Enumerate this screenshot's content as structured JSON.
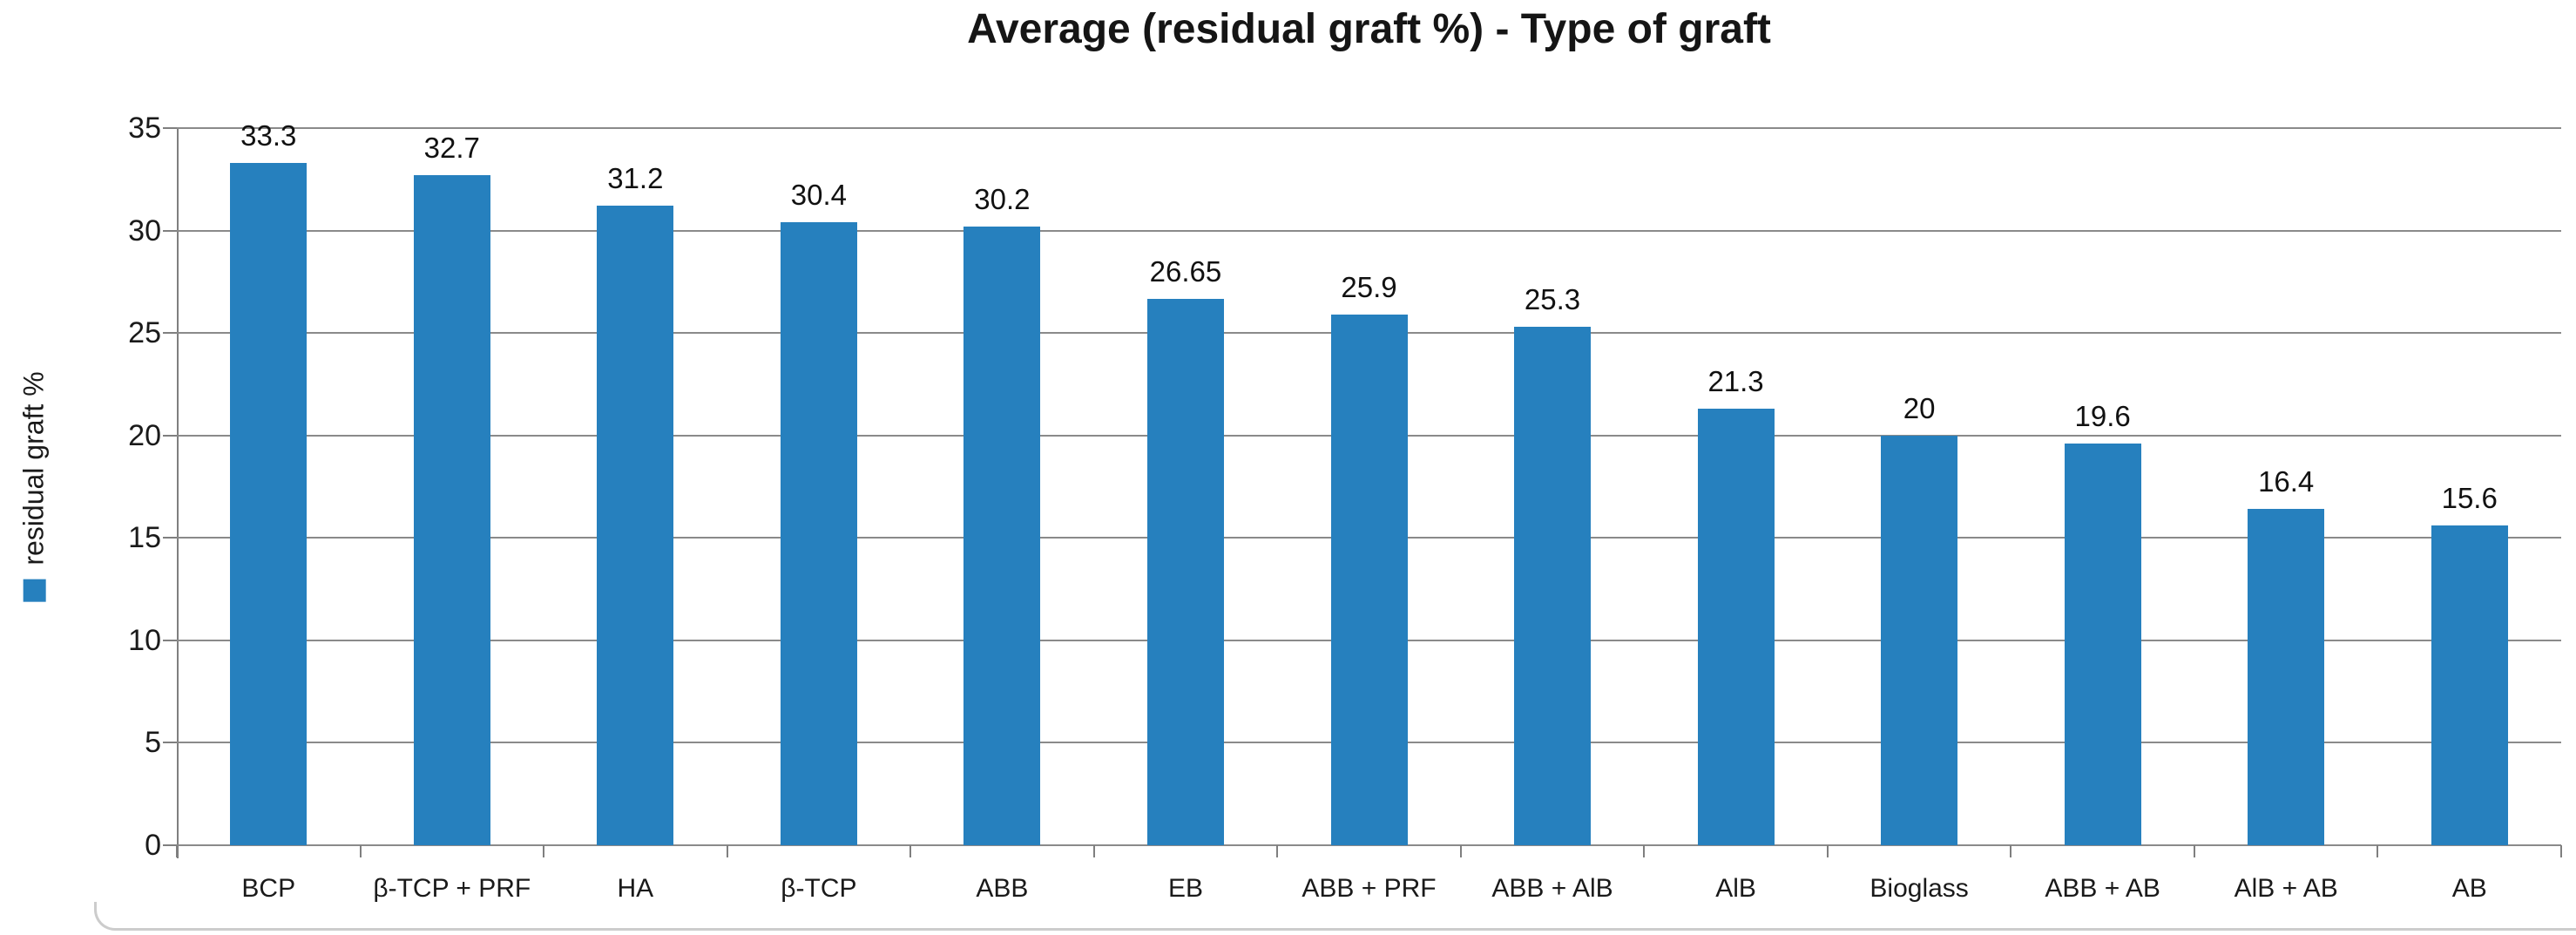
{
  "chart_data": {
    "type": "bar",
    "title": "Average (residual graft %) - Type of graft",
    "ylabel": "residual graft %",
    "xlabel": "",
    "categories": [
      "BCP",
      "β-TCP + PRF",
      "HA",
      "β-TCP",
      "ABB",
      "EB",
      "ABB + PRF",
      "ABB + AlB",
      "AlB",
      "Bioglass",
      "ABB + AB",
      "AlB + AB",
      "AB"
    ],
    "values": [
      33.3,
      32.7,
      31.2,
      30.4,
      30.2,
      26.65,
      25.9,
      25.3,
      21.3,
      20,
      19.6,
      16.4,
      15.6
    ],
    "data_labels": [
      "33.3",
      "32.7",
      "31.2",
      "30.4",
      "30.2",
      "26.65",
      "25.9",
      "25.3",
      "21.3",
      "20",
      "19.6",
      "16.4",
      "15.6"
    ],
    "y_ticks": [
      0,
      5,
      10,
      15,
      20,
      25,
      30,
      35
    ],
    "ylim": [
      0,
      35
    ],
    "grid": true,
    "legend": {
      "label": "residual graft %",
      "marker": "square",
      "position": "left-rotated"
    }
  },
  "colors": {
    "bar": "#2680BE",
    "gridline": "#8a8a8a",
    "axis": "#7f7f7f",
    "text": "#1a1a1a",
    "title": "#151515",
    "frame": "#cccccc"
  }
}
